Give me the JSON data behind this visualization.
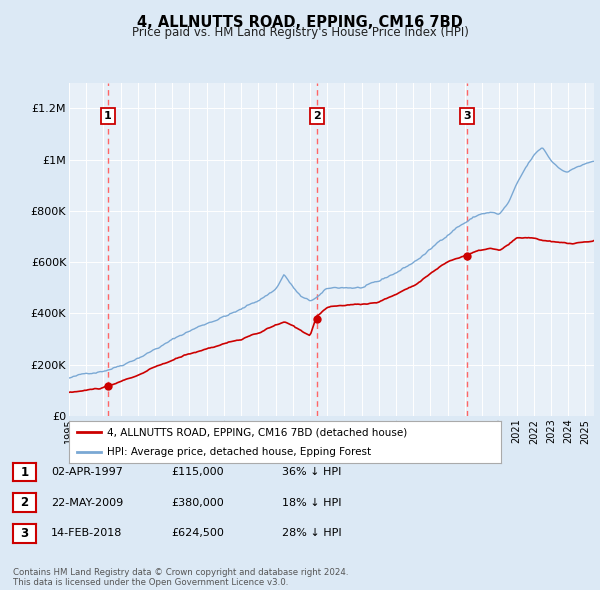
{
  "title": "4, ALLNUTTS ROAD, EPPING, CM16 7BD",
  "subtitle": "Price paid vs. HM Land Registry's House Price Index (HPI)",
  "property_label": "4, ALLNUTTS ROAD, EPPING, CM16 7BD (detached house)",
  "hpi_label": "HPI: Average price, detached house, Epping Forest",
  "sale_points": [
    {
      "date_num": 1997.25,
      "price": 115000,
      "label": "1",
      "date_str": "02-APR-1997",
      "price_str": "£115,000",
      "pct_str": "36% ↓ HPI"
    },
    {
      "date_num": 2009.38,
      "price": 380000,
      "label": "2",
      "date_str": "22-MAY-2009",
      "price_str": "£380,000",
      "pct_str": "18% ↓ HPI"
    },
    {
      "date_num": 2018.12,
      "price": 624500,
      "label": "3",
      "date_str": "14-FEB-2018",
      "price_str": "£624,500",
      "pct_str": "28% ↓ HPI"
    }
  ],
  "xlim": [
    1995.0,
    2025.5
  ],
  "ylim": [
    0,
    1300000
  ],
  "yticks": [
    0,
    200000,
    400000,
    600000,
    800000,
    1000000,
    1200000
  ],
  "ytick_labels": [
    "£0",
    "£200K",
    "£400K",
    "£600K",
    "£800K",
    "£1M",
    "£1.2M"
  ],
  "xticks": [
    1995,
    1996,
    1997,
    1998,
    1999,
    2000,
    2001,
    2002,
    2003,
    2004,
    2005,
    2006,
    2007,
    2008,
    2009,
    2010,
    2011,
    2012,
    2013,
    2014,
    2015,
    2016,
    2017,
    2018,
    2019,
    2020,
    2021,
    2022,
    2023,
    2024,
    2025
  ],
  "bg_color": "#dce9f5",
  "plot_bg_color": "#e8f0f8",
  "grid_color": "#ffffff",
  "property_line_color": "#cc0000",
  "hpi_line_color": "#7aa8d4",
  "sale_point_color": "#cc0000",
  "dashed_line_color": "#ff6666",
  "footer": "Contains HM Land Registry data © Crown copyright and database right 2024.\nThis data is licensed under the Open Government Licence v3.0."
}
